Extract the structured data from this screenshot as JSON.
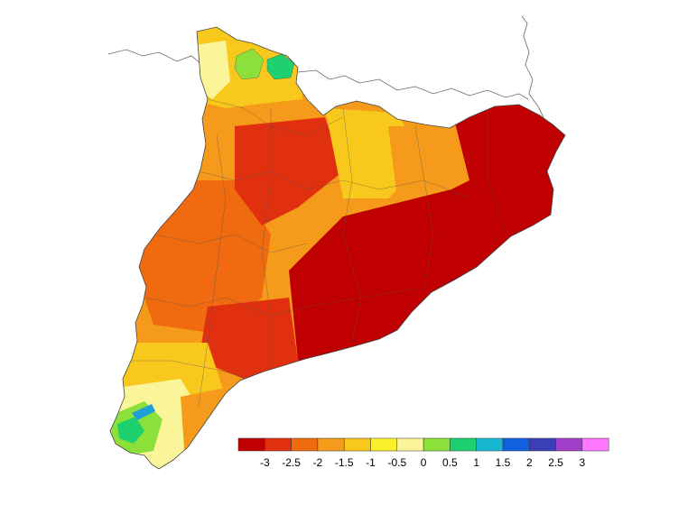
{
  "legend": {
    "colors": [
      "#c00000",
      "#e03010",
      "#f06a10",
      "#f59a1a",
      "#f8c81c",
      "#fcf02a",
      "#fbf59a",
      "#8be03a",
      "#1fd06e",
      "#19b8d2",
      "#1060e0",
      "#3a3fb8",
      "#a040c8",
      "#ff78ff"
    ],
    "tick_labels": [
      "-3",
      "-2.5",
      "-2",
      "-1.5",
      "-1",
      "-0.5",
      "0",
      "0.5",
      "1",
      "1.5",
      "2",
      "2.5",
      "3"
    ]
  },
  "colors": {
    "border_line": "#555555",
    "frontier_line": "#666666",
    "water": "#1e9fd8",
    "background": "#ffffff"
  }
}
